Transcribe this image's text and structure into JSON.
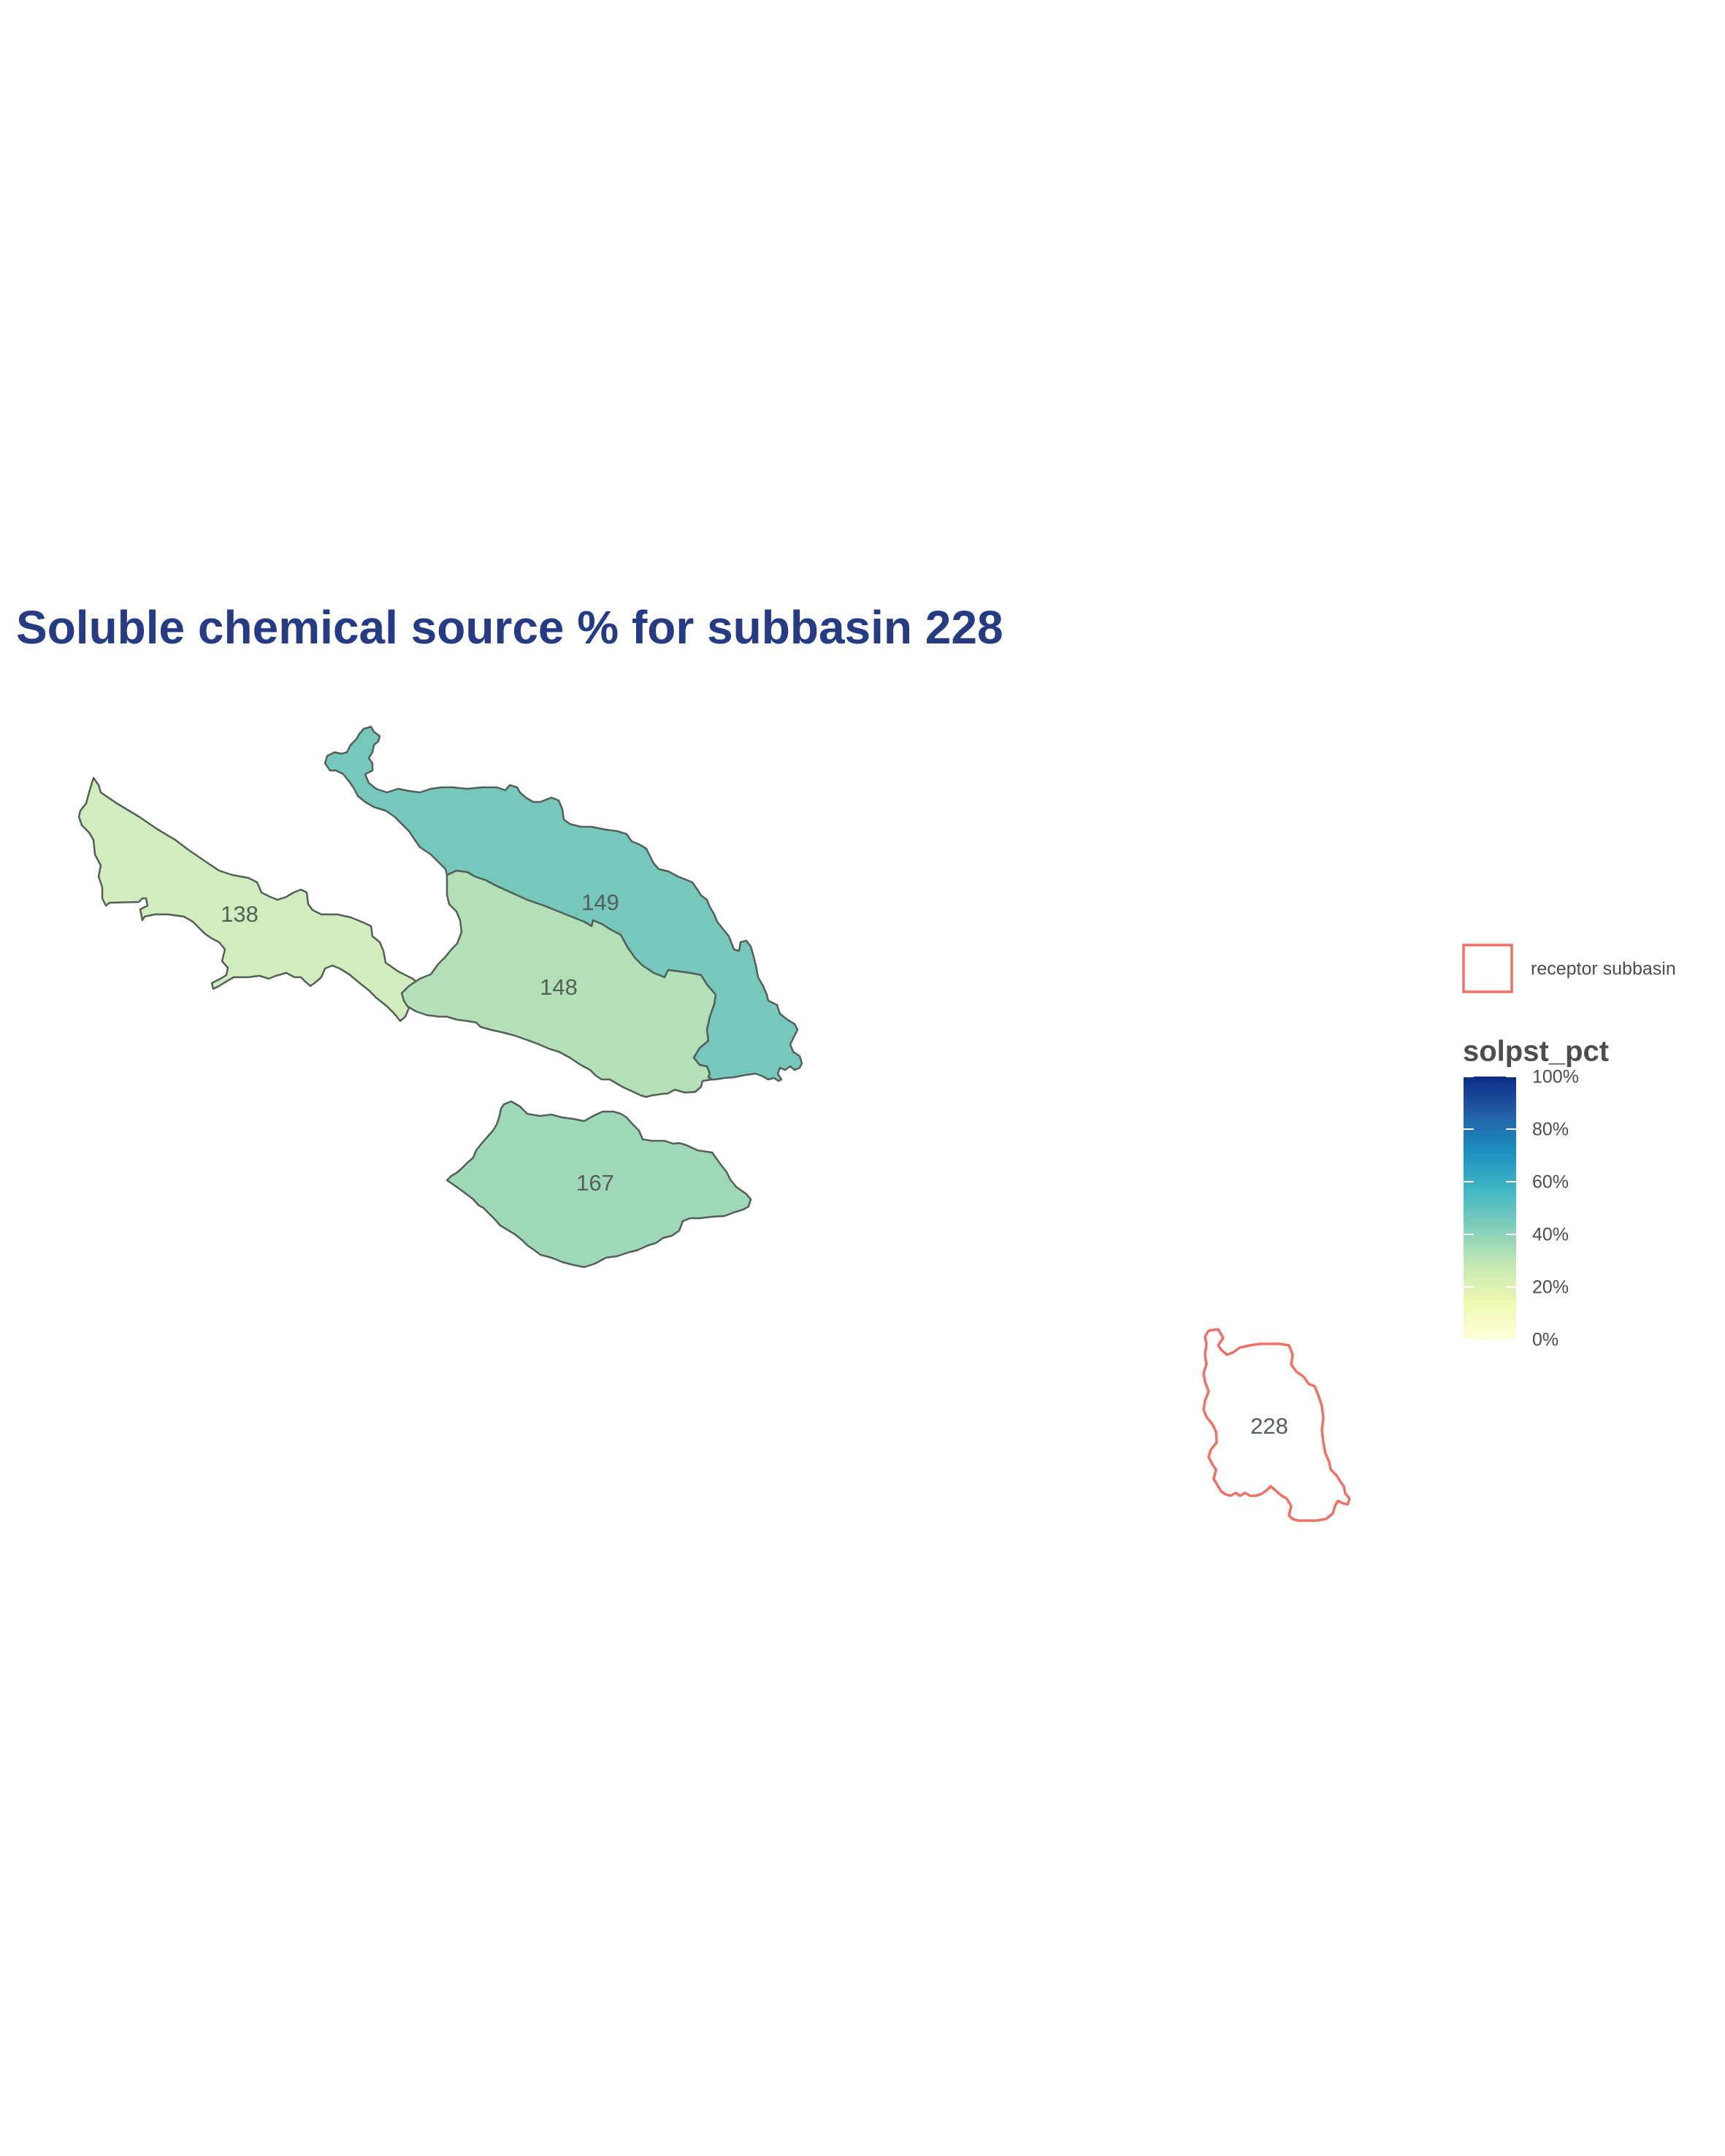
{
  "title": "Soluble chemical source % for subbasin 228",
  "colors": {
    "title": "#253c85",
    "border": "#555f5a",
    "receptor": "#f07068",
    "label": "#555f5a"
  },
  "subbasins": [
    {
      "id": "138",
      "label": "138",
      "solpst_pct": 11,
      "fill": "#d2edbd"
    },
    {
      "id": "148",
      "label": "148",
      "solpst_pct": 17,
      "fill": "#b4e0b8"
    },
    {
      "id": "149",
      "label": "149",
      "solpst_pct": 30,
      "fill": "#76c8bd"
    },
    {
      "id": "167",
      "label": "167",
      "solpst_pct": 22,
      "fill": "#9fd8b9"
    }
  ],
  "receptor": {
    "id": "228",
    "label": "228"
  },
  "legend": {
    "receptor_label": "receptor subbasin",
    "title": "solpst_pct",
    "ticks": [
      "0%",
      "20%",
      "40%",
      "60%",
      "80%",
      "100%"
    ],
    "gradient": [
      "#ffffd9",
      "#edf8b1",
      "#c7e9b4",
      "#7fcdbb",
      "#41b6c4",
      "#1d91c0",
      "#225ea8",
      "#0c2c84"
    ]
  }
}
